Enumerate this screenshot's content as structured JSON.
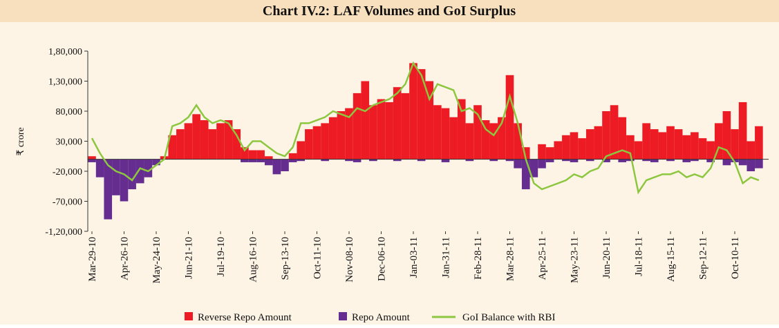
{
  "chart_data": {
    "type": "bar",
    "title": "Chart IV.2: LAF Volumes and GoI Surplus",
    "ylabel": "₹ crore",
    "categories": [
      "Mar-29-10",
      null,
      null,
      null,
      "Apr-26-10",
      null,
      null,
      null,
      "May-24-10",
      null,
      null,
      null,
      "Jun-21-10",
      null,
      null,
      null,
      "Jul-19-10",
      null,
      null,
      null,
      "Aug-16-10",
      null,
      null,
      null,
      "Sep-13-10",
      null,
      null,
      null,
      "Oct-11-10",
      null,
      null,
      null,
      "Nov-08-10",
      null,
      null,
      null,
      "Dec-06-10",
      null,
      null,
      null,
      "Jan-03-11",
      null,
      null,
      null,
      "Jan-31-11",
      null,
      null,
      null,
      "Feb-28-11",
      null,
      null,
      null,
      "Mar-28-11",
      null,
      null,
      null,
      "Apr-25-11",
      null,
      null,
      null,
      "May-23-11",
      null,
      null,
      null,
      "Jun-20-11",
      null,
      null,
      null,
      "Jul-18-11",
      null,
      null,
      null,
      "Aug-15-11",
      null,
      null,
      null,
      "Sep-12-11",
      null,
      null,
      null,
      "Oct-10-11",
      null,
      null,
      null
    ],
    "series": [
      {
        "name": "Reverse Repo Amount",
        "color": "#ed1c24",
        "kind": "bar",
        "values": [
          5000,
          0,
          0,
          0,
          0,
          0,
          0,
          0,
          0,
          5000,
          40000,
          50000,
          60000,
          75000,
          65000,
          50000,
          60000,
          65000,
          50000,
          20000,
          15000,
          15000,
          5000,
          0,
          0,
          10000,
          30000,
          50000,
          55000,
          60000,
          70000,
          80000,
          85000,
          110000,
          130000,
          90000,
          100000,
          95000,
          120000,
          110000,
          160000,
          150000,
          130000,
          90000,
          85000,
          70000,
          100000,
          60000,
          90000,
          65000,
          60000,
          70000,
          140000,
          60000,
          20000,
          0,
          25000,
          20000,
          30000,
          40000,
          45000,
          35000,
          50000,
          55000,
          80000,
          90000,
          70000,
          40000,
          30000,
          60000,
          50000,
          45000,
          55000,
          50000,
          40000,
          45000,
          35000,
          30000,
          60000,
          80000,
          50000,
          95000,
          30000,
          55000
        ]
      },
      {
        "name": "Repo Amount",
        "color": "#662d91",
        "kind": "bar",
        "values": [
          -5000,
          -30000,
          -100000,
          -60000,
          -70000,
          -50000,
          -40000,
          -30000,
          -10000,
          0,
          0,
          0,
          0,
          0,
          0,
          0,
          0,
          0,
          0,
          -5000,
          -5000,
          -5000,
          -10000,
          -25000,
          -20000,
          -5000,
          -3000,
          0,
          0,
          -3000,
          0,
          0,
          -3000,
          -5000,
          0,
          -3000,
          0,
          0,
          -3000,
          0,
          0,
          -3000,
          0,
          0,
          -5000,
          0,
          0,
          -3000,
          0,
          0,
          -3000,
          0,
          -3000,
          -15000,
          -50000,
          -30000,
          -15000,
          -5000,
          0,
          -3000,
          -5000,
          0,
          -3000,
          0,
          -5000,
          0,
          -5000,
          -3000,
          0,
          -3000,
          -5000,
          0,
          -3000,
          0,
          -5000,
          -3000,
          0,
          -5000,
          0,
          -10000,
          -5000,
          -10000,
          -20000,
          -15000
        ]
      },
      {
        "name": "GoI Balance with RBI",
        "color": "#8dc63f",
        "kind": "line",
        "values": [
          35000,
          10000,
          -10000,
          -20000,
          -25000,
          -35000,
          -15000,
          -20000,
          -10000,
          0,
          55000,
          60000,
          70000,
          90000,
          70000,
          60000,
          65000,
          60000,
          40000,
          15000,
          30000,
          30000,
          20000,
          10000,
          5000,
          20000,
          60000,
          60000,
          65000,
          70000,
          80000,
          75000,
          70000,
          85000,
          80000,
          90000,
          95000,
          100000,
          110000,
          125000,
          160000,
          140000,
          100000,
          125000,
          120000,
          115000,
          80000,
          85000,
          75000,
          50000,
          40000,
          60000,
          105000,
          60000,
          0,
          -40000,
          -50000,
          -45000,
          -40000,
          -35000,
          -25000,
          -30000,
          -20000,
          -15000,
          5000,
          10000,
          15000,
          10000,
          -55000,
          -35000,
          -30000,
          -25000,
          -25000,
          -20000,
          -30000,
          -25000,
          -30000,
          -15000,
          20000,
          15000,
          -5000,
          -40000,
          -30000,
          -35000
        ]
      }
    ],
    "ylim": [
      -120000,
      180000
    ],
    "yticks": [
      {
        "value": -120000,
        "label": "-1,20,000"
      },
      {
        "value": -70000,
        "label": "-70,000"
      },
      {
        "value": -20000,
        "label": "-20,000"
      },
      {
        "value": 30000,
        "label": "30,000"
      },
      {
        "value": 80000,
        "label": "80,000"
      },
      {
        "value": 130000,
        "label": "1,30,000"
      },
      {
        "value": 180000,
        "label": "1,80,000"
      }
    ]
  }
}
